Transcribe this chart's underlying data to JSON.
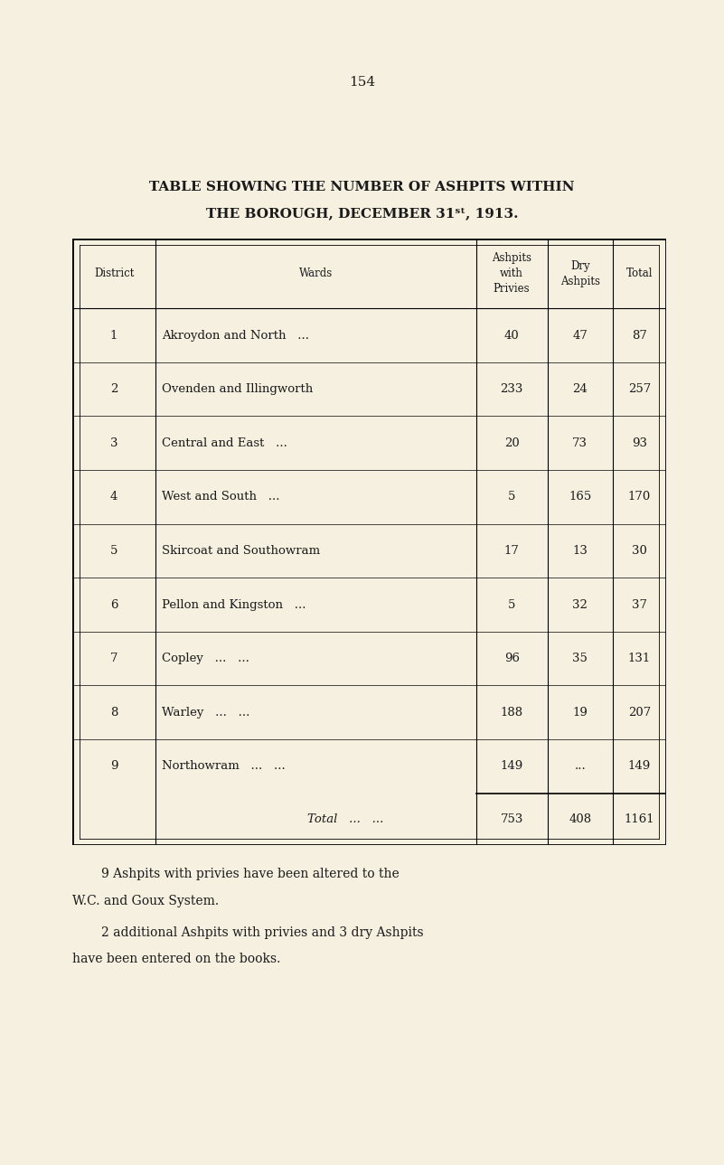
{
  "page_number": "154",
  "title_line1": "TABLE SHOWING THE NUMBER OF ASHPITS WITHIN",
  "title_line2": "THE BOROUGH, DECEMBER 31ˢᵗ, 1913.",
  "bg_color": "#f5f0e0",
  "text_color": "#1a1a1a",
  "col_headers": [
    "District",
    "Wards",
    "Ashpits\nwith\nPrivies",
    "Dry\nAshpits",
    "Total"
  ],
  "rows": [
    [
      "1",
      "Akroydon and North   ...",
      "40",
      "47",
      "87"
    ],
    [
      "2",
      "Ovenden and Illingworth",
      "233",
      "24",
      "257"
    ],
    [
      "3",
      "Central and East   ...",
      "20",
      "73",
      "93"
    ],
    [
      "4",
      "West and South   ...",
      "5",
      "165",
      "170"
    ],
    [
      "5",
      "Skircoat and Southowram",
      "17",
      "13",
      "30"
    ],
    [
      "6",
      "Pellon and Kingston   ...",
      "5",
      "32",
      "37"
    ],
    [
      "7",
      "Copley   ...   ...",
      "96",
      "35",
      "131"
    ],
    [
      "8",
      "Warley   ...   ...",
      "188",
      "19",
      "207"
    ],
    [
      "9",
      "Northowram   ...   ...",
      "149",
      "...",
      "149"
    ]
  ],
  "total_row": [
    "",
    "Total   ...   ...",
    "753",
    "408",
    "1161"
  ],
  "footnote1": "9 Ashpits with privies have been altered to the W.C. and Goux System.",
  "footnote2": "2 additional Ashpits with privies and 3 dry Ashpits have been entered on the books."
}
